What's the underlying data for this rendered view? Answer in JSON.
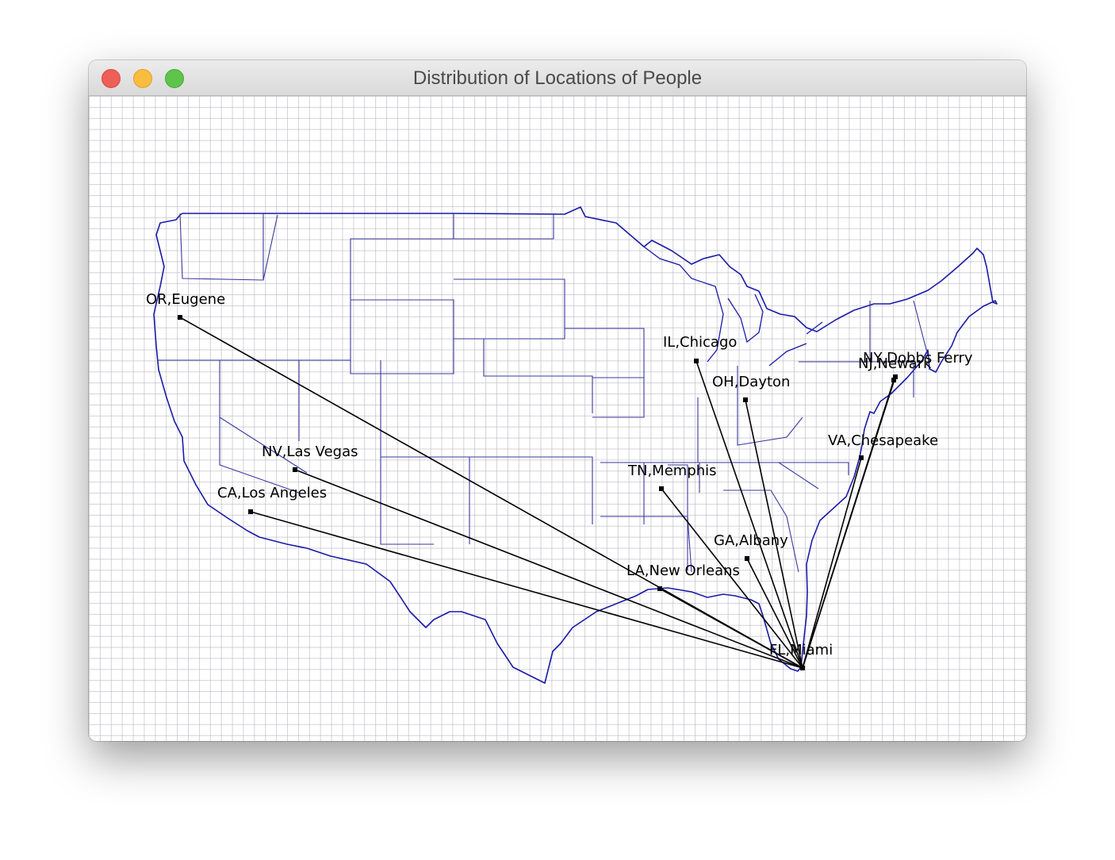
{
  "window": {
    "title": "Distribution of Locations of People"
  },
  "colors": {
    "map_outline": "#1a1aa8",
    "state_borders": "#3a3aa0",
    "connections": "#000000",
    "grid": "#b4b4bc"
  },
  "locations": [
    {
      "id": "eugene",
      "label": "OR,Eugene"
    },
    {
      "id": "chicago",
      "label": "IL,Chicago"
    },
    {
      "id": "dayton",
      "label": "OH,Dayton"
    },
    {
      "id": "dobbs",
      "label": "NY,Dobbs Ferry"
    },
    {
      "id": "newark",
      "label": "NJ,Newark"
    },
    {
      "id": "chesapeake",
      "label": "VA,Chesapeake"
    },
    {
      "id": "lasvegas",
      "label": "NV,Las Vegas"
    },
    {
      "id": "losangeles",
      "label": "CA,Los Angeles"
    },
    {
      "id": "memphis",
      "label": "TN,Memphis"
    },
    {
      "id": "albany",
      "label": "GA,Albany"
    },
    {
      "id": "neworleans",
      "label": "LA,New Orleans"
    },
    {
      "id": "miami",
      "label": "FL,Miami"
    }
  ],
  "connections": [
    {
      "from": "miami",
      "to": "eugene"
    },
    {
      "from": "miami",
      "to": "lasvegas"
    },
    {
      "from": "miami",
      "to": "losangeles"
    },
    {
      "from": "miami",
      "to": "chicago"
    },
    {
      "from": "miami",
      "to": "dayton"
    },
    {
      "from": "miami",
      "to": "memphis"
    },
    {
      "from": "miami",
      "to": "albany"
    },
    {
      "from": "miami",
      "to": "neworleans"
    },
    {
      "from": "miami",
      "to": "dobbs"
    },
    {
      "from": "miami",
      "to": "newark"
    },
    {
      "from": "miami",
      "to": "chesapeake"
    }
  ]
}
